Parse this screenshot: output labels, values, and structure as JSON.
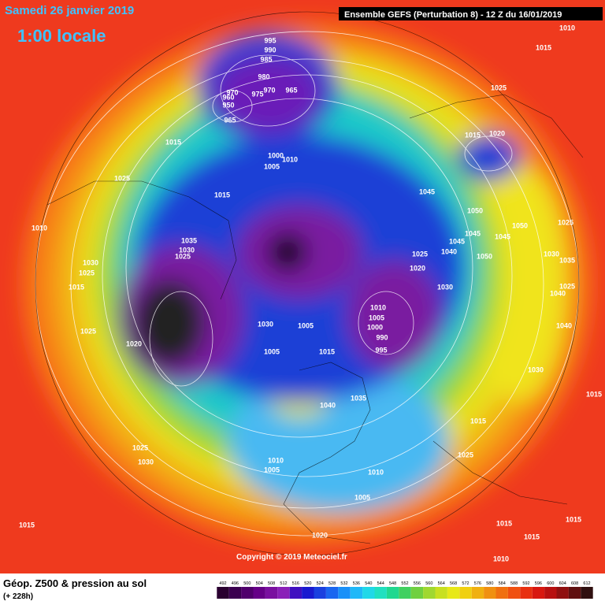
{
  "header": {
    "date": "Samedi 26 janvier 2019",
    "time": "1:00 locale",
    "run": "Ensemble GEFS  (Perturbation 8)  -  12 Z du 16/01/2019"
  },
  "footer": {
    "title": "Géop. Z500 & pression au sol",
    "lead": "(+ 228h)",
    "copyright": "Copyright © 2019 Meteociel.fr"
  },
  "pressure_labels": [
    995,
    990,
    985,
    980,
    975,
    970,
    960,
    950,
    965,
    970,
    965,
    1000,
    1005,
    1010,
    1015,
    1025,
    1015,
    1010,
    1030,
    1025,
    1015,
    1025,
    1020,
    1035,
    1030,
    1025,
    1030,
    1005,
    1005,
    1015,
    1010,
    1005,
    1000,
    990,
    995,
    1045,
    1050,
    1045,
    1045,
    1040,
    1050,
    1045,
    1050,
    1025,
    1030,
    1035,
    1025,
    1040,
    1040,
    1030,
    1015,
    1020,
    1030,
    1025,
    1025,
    1015,
    1020,
    1010,
    1015,
    1040,
    1035,
    1015,
    1025,
    1025,
    1030,
    1010,
    1005,
    1010,
    1005,
    1015,
    1020,
    1015,
    1015,
    1015,
    1010
  ],
  "scale": [
    492,
    496,
    500,
    504,
    508,
    512,
    516,
    520,
    524,
    528,
    532,
    536,
    540,
    544,
    548,
    552,
    556,
    560,
    564,
    568,
    572,
    576,
    580,
    584,
    588,
    592,
    596,
    600,
    604,
    608,
    612
  ]
}
